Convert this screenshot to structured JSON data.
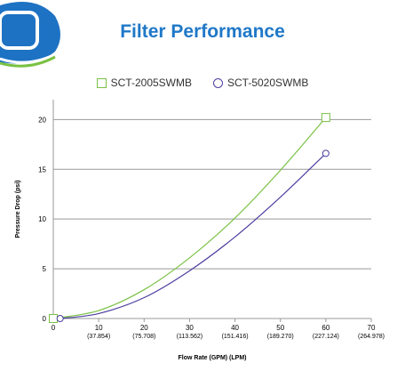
{
  "header": {
    "title": "Filter Performance"
  },
  "colors": {
    "title": "#1f78c8",
    "series_a": "#7ac143",
    "series_b": "#4b3fa0",
    "grid": "#999999",
    "logo_blue": "#1d72c3",
    "logo_green": "#7ac143"
  },
  "icons": {
    "logo": "brand-logo-icon"
  },
  "chart_data": {
    "type": "line",
    "title": "Filter Performance",
    "xlabel": "Flow Rate (GPM) (LPM)",
    "ylabel": "Pressure Drop (psi)",
    "xlim": [
      0,
      70
    ],
    "ylim": [
      0,
      22
    ],
    "grid": true,
    "legend_position": "top-center",
    "x_ticks": [
      {
        "value": 0,
        "label": "0",
        "sub": ""
      },
      {
        "value": 10,
        "label": "10",
        "sub": "(37.854)"
      },
      {
        "value": 20,
        "label": "20",
        "sub": "(75.708)"
      },
      {
        "value": 30,
        "label": "30",
        "sub": "(113.562)"
      },
      {
        "value": 40,
        "label": "40",
        "sub": "(151.416)"
      },
      {
        "value": 50,
        "label": "50",
        "sub": "(189.270)"
      },
      {
        "value": 60,
        "label": "60",
        "sub": "(227.124)"
      },
      {
        "value": 70,
        "label": "70",
        "sub": "(264.978)"
      }
    ],
    "y_ticks": [
      0,
      5,
      10,
      15,
      20
    ],
    "series": [
      {
        "name": "SCT-2005SWMB",
        "marker": "square",
        "color": "#7ac143",
        "x": [
          0,
          10,
          20,
          30,
          40,
          50,
          60
        ],
        "y": [
          0,
          0.8,
          2.9,
          6.1,
          10.1,
          14.9,
          20.2
        ],
        "marked_points": [
          [
            0,
            0
          ],
          [
            60,
            20.2
          ]
        ]
      },
      {
        "name": "SCT-5020SWMB",
        "marker": "circle",
        "color": "#4b3fa0",
        "x": [
          1.5,
          10,
          20,
          30,
          40,
          50,
          60
        ],
        "y": [
          0,
          0.5,
          2.1,
          4.8,
          8.2,
          12.2,
          16.6
        ],
        "marked_points": [
          [
            1.5,
            0
          ],
          [
            60,
            16.6
          ]
        ]
      }
    ]
  }
}
